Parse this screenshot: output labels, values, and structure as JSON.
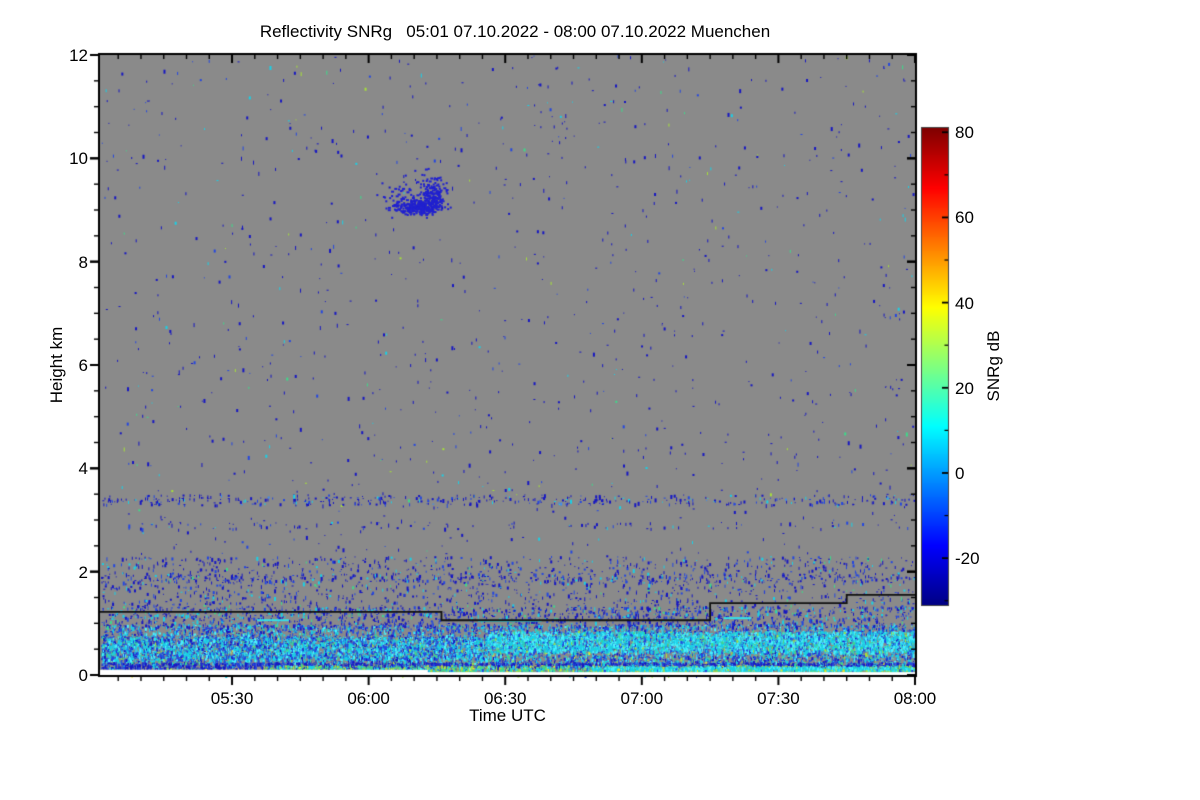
{
  "chart_data": {
    "type": "heatmap",
    "title": "Reflectivity SNRg   05:01 07.10.2022 - 08:00 07.10.2022 Muenchen",
    "instrument_product": "Reflectivity SNRg",
    "site": "Muenchen",
    "time_start": "05:01 07.10.2022",
    "time_end": "08:00 07.10.2022",
    "xlabel": "Time UTC",
    "ylabel": "Height km",
    "colorbar_label": "SNRg dB",
    "x_axis": {
      "start_minutes": 0,
      "end_minutes": 179,
      "ticks": [
        {
          "label": "05:30",
          "minutes": 29
        },
        {
          "label": "06:00",
          "minutes": 59
        },
        {
          "label": "06:30",
          "minutes": 89
        },
        {
          "label": "07:00",
          "minutes": 119
        },
        {
          "label": "07:30",
          "minutes": 149
        },
        {
          "label": "08:00",
          "minutes": 179
        }
      ],
      "minor_step_minutes": 5
    },
    "y_axis": {
      "min_km": 0,
      "max_km": 12,
      "ticks": [
        0,
        2,
        4,
        6,
        8,
        10,
        12
      ],
      "minor_step_km": 0.5
    },
    "colorbar": {
      "min_db": -31,
      "max_db": 81,
      "ticks": [
        80,
        60,
        40,
        20,
        0,
        -20
      ],
      "minor_step_db": 10,
      "colormap": "jet",
      "jet_stops": [
        [
          0.0,
          0,
          0,
          131
        ],
        [
          0.125,
          0,
          0,
          255
        ],
        [
          0.375,
          0,
          255,
          255
        ],
        [
          0.625,
          255,
          255,
          0
        ],
        [
          0.875,
          255,
          0,
          0
        ],
        [
          1.0,
          128,
          0,
          0
        ]
      ]
    },
    "background": {
      "meaning": "no signal",
      "color": "#8a8a8a"
    },
    "palette": {
      "darkblue": "#1717c2",
      "blue": "#2447e0",
      "lightblue": "#3f8cf0",
      "cyan": "#1ad0e6",
      "brightcyan": "#4af2ff",
      "green": "#3fd98a",
      "yellowgreen": "#a6e03a",
      "yellow": "#e8e430",
      "cloudblue": "#2121cf",
      "white": "#ffffff",
      "frame": "#000000",
      "baseline": "#111111",
      "dash_cyan": "#35e0e8"
    },
    "rng_seed": 42,
    "noise_layers": [
      {
        "name": "upper-noise",
        "t": [
          0,
          179
        ],
        "h": [
          2.25,
          12.0
        ],
        "count": 1000,
        "colors": [
          [
            "darkblue",
            70
          ],
          [
            "blue",
            16
          ],
          [
            "cyan",
            7
          ],
          [
            "green",
            4
          ],
          [
            "yellowgreen",
            3
          ]
        ]
      },
      {
        "name": "band-3p4km",
        "t": [
          0,
          179
        ],
        "h": [
          3.3,
          3.5
        ],
        "count": 430,
        "colors": [
          [
            "darkblue",
            66
          ],
          [
            "blue",
            22
          ],
          [
            "cyan",
            9
          ],
          [
            "lightblue",
            3
          ]
        ]
      },
      {
        "name": "band-2p9km",
        "t": [
          0,
          179
        ],
        "h": [
          2.84,
          2.97
        ],
        "count": 100,
        "colors": [
          [
            "darkblue",
            70
          ],
          [
            "blue",
            20
          ],
          [
            "cyan",
            10
          ]
        ]
      },
      {
        "name": "band-1p9km",
        "t": [
          0,
          179
        ],
        "h": [
          1.8,
          1.97
        ],
        "count": 280,
        "colors": [
          [
            "darkblue",
            72
          ],
          [
            "blue",
            20
          ],
          [
            "cyan",
            8
          ]
        ]
      },
      {
        "name": "band-1to2km",
        "t": [
          0,
          179
        ],
        "h": [
          1.3,
          2.3
        ],
        "count": 1400,
        "colors": [
          [
            "darkblue",
            66
          ],
          [
            "blue",
            20
          ],
          [
            "cyan",
            10
          ],
          [
            "green",
            4
          ]
        ]
      },
      {
        "name": "below-line-band",
        "t": [
          0,
          179
        ],
        "h": [
          0.95,
          1.33
        ],
        "count": 1500,
        "colors": [
          [
            "darkblue",
            50
          ],
          [
            "blue",
            27
          ],
          [
            "cyan",
            18
          ],
          [
            "green",
            5
          ]
        ]
      },
      {
        "name": "bl-top",
        "t": [
          0,
          179
        ],
        "h": [
          0.72,
          0.98
        ],
        "count": 2500,
        "colors": [
          [
            "blue",
            33
          ],
          [
            "darkblue",
            22
          ],
          [
            "cyan",
            30
          ],
          [
            "brightcyan",
            10
          ],
          [
            "green",
            5
          ]
        ]
      },
      {
        "name": "bl-core",
        "t": [
          0,
          179
        ],
        "h": [
          0.22,
          0.75
        ],
        "count": 7000,
        "colors": [
          [
            "blue",
            30
          ],
          [
            "darkblue",
            17
          ],
          [
            "cyan",
            30
          ],
          [
            "brightcyan",
            13
          ],
          [
            "green",
            6
          ],
          [
            "yellowgreen",
            3
          ],
          [
            "yellow",
            1
          ]
        ]
      },
      {
        "name": "bl-bright-right",
        "t": [
          85,
          179
        ],
        "h": [
          0.45,
          0.85
        ],
        "count": 4200,
        "colors": [
          [
            "cyan",
            44
          ],
          [
            "brightcyan",
            34
          ],
          [
            "blue",
            12
          ],
          [
            "green",
            7
          ],
          [
            "yellowgreen",
            3
          ]
        ]
      },
      {
        "name": "bl-bright-left",
        "t": [
          0,
          85
        ],
        "h": [
          0.3,
          0.72
        ],
        "count": 2300,
        "colors": [
          [
            "cyan",
            38
          ],
          [
            "brightcyan",
            20
          ],
          [
            "blue",
            30
          ],
          [
            "darkblue",
            8
          ],
          [
            "green",
            4
          ]
        ]
      },
      {
        "name": "dark-blue-row",
        "t": [
          0,
          179
        ],
        "h": [
          0.13,
          0.245
        ],
        "count": 2200,
        "colors": [
          [
            "darkblue",
            56
          ],
          [
            "blue",
            34
          ],
          [
            "cyan",
            7
          ],
          [
            "green",
            3
          ]
        ]
      },
      {
        "name": "surface-green-band",
        "t": [
          36,
          179
        ],
        "h": [
          0.05,
          0.19
        ],
        "count": 1900,
        "colors": [
          [
            "green",
            30
          ],
          [
            "yellowgreen",
            30
          ],
          [
            "cyan",
            25
          ],
          [
            "yellow",
            8
          ],
          [
            "brightcyan",
            7
          ]
        ]
      },
      {
        "name": "surface-cyan-line",
        "t": [
          108,
          179
        ],
        "h": [
          0.1,
          0.17
        ],
        "count": 900,
        "colors": [
          [
            "cyan",
            60
          ],
          [
            "brightcyan",
            40
          ]
        ]
      },
      {
        "name": "surface-sparse",
        "t": [
          0,
          179
        ],
        "h": [
          0.0,
          0.13
        ],
        "count": 650,
        "colors": [
          [
            "cyan",
            28
          ],
          [
            "green",
            30
          ],
          [
            "yellowgreen",
            20
          ],
          [
            "yellow",
            10
          ],
          [
            "blue",
            12
          ]
        ]
      }
    ],
    "cloud_feature": {
      "description": "isolated cloud echo",
      "time_span_utc": "06:05 - 06:17",
      "height_km": [
        8.9,
        9.6
      ],
      "color_key": "cloudblue",
      "clusters": [
        {
          "t": 69.5,
          "h": 9.07,
          "sd_t": 2.6,
          "sd_h": 0.07,
          "n": 230
        },
        {
          "t": 72.8,
          "h": 9.32,
          "sd_t": 1.4,
          "sd_h": 0.17,
          "n": 150
        },
        {
          "t": 66.5,
          "h": 9.3,
          "sd_t": 3.0,
          "sd_h": 0.2,
          "n": 50
        }
      ]
    },
    "base_line": {
      "description": "stepped black line (lowest usable gate / mixing height)",
      "color_key": "baseline",
      "segments": [
        {
          "t0": 0,
          "t1": 75,
          "h_km": 1.22
        },
        {
          "t0": 75,
          "t1": 134,
          "h_km": 1.06
        },
        {
          "t0": 134,
          "t1": 164,
          "h_km": 1.39
        },
        {
          "t0": 164,
          "t1": 179,
          "h_km": 1.55
        }
      ]
    },
    "cyan_dashes": [
      {
        "t0": 34.5,
        "t1": 41.5,
        "h_km": 1.08
      },
      {
        "t0": 83,
        "t1": 97,
        "h_km": 1.07
      },
      {
        "t0": 137,
        "t1": 143,
        "h_km": 1.12
      }
    ],
    "white_strips": [
      {
        "t0": 0,
        "t1": 179,
        "h0": 0,
        "h1": 0.055
      },
      {
        "t0": 0,
        "t1": 72,
        "h0": 0,
        "h1": 0.1
      }
    ]
  }
}
